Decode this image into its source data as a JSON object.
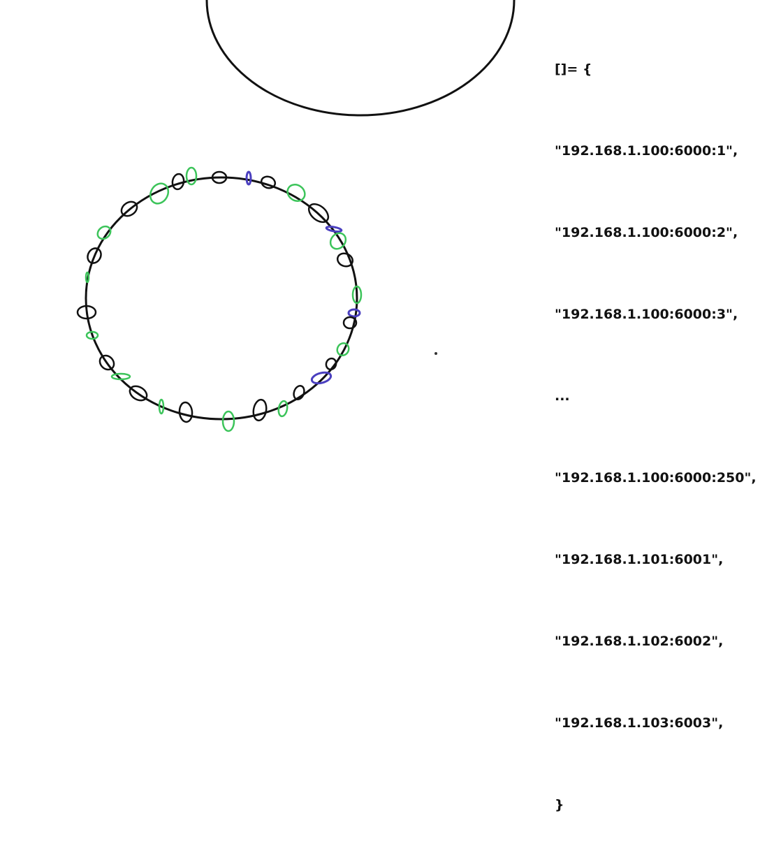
{
  "code": {
    "lines": [
      "[]= {",
      "\"192.168.1.100:6000:1\",",
      "\"192.168.1.100:6000:2\",",
      "\"192.168.1.100:6000:3\",",
      "...",
      "\"192.168.1.100:6000:250\",",
      "\"192.168.1.101:6001\",",
      "\"192.168.1.102:6002\",",
      "\"192.168.1.103:6003\",",
      "}"
    ]
  },
  "colors": {
    "stroke": "#111111",
    "node_black": "#111111",
    "node_green": "#3cc45a",
    "node_blue": "#4a3fbf"
  }
}
